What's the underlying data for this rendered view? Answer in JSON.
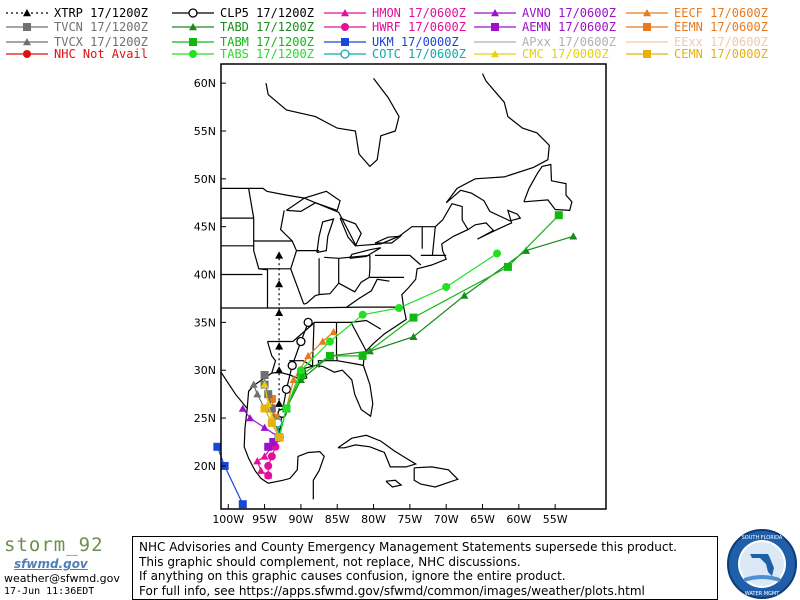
{
  "legend": [
    {
      "label": "XTRP 17/1200Z",
      "color": "#000000",
      "marker": "triangle",
      "dash": "dotted"
    },
    {
      "label": "CLP5 17/1200Z",
      "color": "#000000",
      "marker": "circle-open",
      "dash": "solid"
    },
    {
      "label": "HMON 17/0600Z",
      "color": "#e0109c",
      "marker": "triangle",
      "dash": "solid"
    },
    {
      "label": "AVNO 17/0600Z",
      "color": "#9b10c8",
      "marker": "triangle",
      "dash": "solid"
    },
    {
      "label": "EECF 17/0600Z",
      "color": "#e87a1e",
      "marker": "triangle",
      "dash": "solid"
    },
    {
      "label": "TVCN 17/1200Z",
      "color": "#707070",
      "marker": "square",
      "dash": "solid"
    },
    {
      "label": "TABD 17/1200Z",
      "color": "#1a8a1a",
      "marker": "triangle",
      "dash": "solid"
    },
    {
      "label": "HWRF 17/0600Z",
      "color": "#e0109c",
      "marker": "circle",
      "dash": "solid"
    },
    {
      "label": "AEMN 17/0600Z",
      "color": "#9b10c8",
      "marker": "square",
      "dash": "solid"
    },
    {
      "label": "EEMN 17/0600Z",
      "color": "#e87a1e",
      "marker": "square",
      "dash": "solid"
    },
    {
      "label": "TVCX 17/1200Z",
      "color": "#707070",
      "marker": "triangle",
      "dash": "solid"
    },
    {
      "label": "TABM 17/1200Z",
      "color": "#12b812",
      "marker": "square",
      "dash": "solid"
    },
    {
      "label": "UKM 17/0000Z",
      "color": "#1846d6",
      "marker": "square",
      "dash": "solid"
    },
    {
      "label": "APxx 17/0600Z",
      "color": "#b0b0b0",
      "marker": "none",
      "dash": "solid"
    },
    {
      "label": "EExx 17/0600Z",
      "color": "#f4c8a8",
      "marker": "none",
      "dash": "solid"
    },
    {
      "label": "NHC Not Avail",
      "color": "#e01010",
      "marker": "circle",
      "dash": "solid"
    },
    {
      "label": "TABS 17/1200Z",
      "color": "#22e022",
      "marker": "circle",
      "dash": "solid"
    },
    {
      "label": "COTC 17/0600Z",
      "color": "#10a8b0",
      "marker": "circle-open",
      "dash": "solid"
    },
    {
      "label": "CMC 17/0000Z",
      "color": "#e8d010",
      "marker": "triangle",
      "dash": "solid"
    },
    {
      "label": "CEMN 17/0000Z",
      "color": "#e8b010",
      "marker": "square",
      "dash": "solid"
    }
  ],
  "chart_data": {
    "type": "line",
    "xlabel": "",
    "ylabel": "",
    "x_ticks": [
      "100W",
      "95W",
      "90W",
      "85W",
      "80W",
      "75W",
      "70W",
      "65W",
      "60W",
      "55W"
    ],
    "y_ticks": [
      "20N",
      "25N",
      "30N",
      "35N",
      "40N",
      "45N",
      "50N",
      "55N",
      "60N"
    ],
    "xlim": [
      -101,
      -48
    ],
    "ylim": [
      15.5,
      62
    ],
    "grid": false,
    "series": [
      {
        "name": "XTRP",
        "color": "#000000",
        "marker": "triangle",
        "x": [
          -93.0,
          -93.0,
          -93.0,
          -93.0,
          -93.0,
          -93.0,
          -93.0
        ],
        "y": [
          23.2,
          26.5,
          30.0,
          32.5,
          36.0,
          39.0,
          42.0
        ]
      },
      {
        "name": "CLP5",
        "color": "#000000",
        "marker": "circle-open",
        "x": [
          -93.0,
          -92.6,
          -92.0,
          -91.2,
          -90.0,
          -89.0
        ],
        "y": [
          23.0,
          25.5,
          28.0,
          30.5,
          33.0,
          35.0
        ]
      },
      {
        "name": "HMON",
        "color": "#e0109c",
        "marker": "triangle",
        "x": [
          -93.0,
          -94.0,
          -95.0,
          -96.0,
          -95.5,
          -94.5
        ],
        "y": [
          23.0,
          22.0,
          21.0,
          20.5,
          19.5,
          19.0
        ]
      },
      {
        "name": "HWRF",
        "color": "#e0109c",
        "marker": "circle",
        "x": [
          -93.0,
          -93.5,
          -94.0,
          -94.5,
          -94.5
        ],
        "y": [
          23.0,
          22.0,
          21.0,
          20.0,
          19.0
        ]
      },
      {
        "name": "AVNO",
        "color": "#9b10c8",
        "marker": "triangle",
        "x": [
          -93.0,
          -95.0,
          -97.0,
          -98.0
        ],
        "y": [
          23.0,
          24.0,
          25.0,
          26.0
        ]
      },
      {
        "name": "AEMN",
        "color": "#9b10c8",
        "marker": "square",
        "x": [
          -93.0,
          -93.8,
          -94.5
        ],
        "y": [
          23.0,
          22.5,
          22.0
        ]
      },
      {
        "name": "EECF",
        "color": "#e87a1e",
        "marker": "triangle",
        "x": [
          -93.0,
          -92.0,
          -91.0,
          -89.0,
          -87.0,
          -85.5
        ],
        "y": [
          23.0,
          26.0,
          29.0,
          31.5,
          33.0,
          34.0
        ]
      },
      {
        "name": "EEMN",
        "color": "#e87a1e",
        "marker": "square",
        "x": [
          -93.0,
          -93.5,
          -94.0
        ],
        "y": [
          23.0,
          25.0,
          27.0
        ]
      },
      {
        "name": "TVCN",
        "color": "#707070",
        "marker": "square",
        "x": [
          -93.0,
          -93.5,
          -94.0,
          -94.5,
          -95.0,
          -95.0
        ],
        "y": [
          23.0,
          24.5,
          26.0,
          27.5,
          28.5,
          29.5
        ]
      },
      {
        "name": "TVCX",
        "color": "#707070",
        "marker": "triangle",
        "x": [
          -93.0,
          -94.0,
          -95.0,
          -96.0,
          -96.5
        ],
        "y": [
          23.0,
          24.5,
          26.0,
          27.5,
          28.5
        ]
      },
      {
        "name": "TABD",
        "color": "#1a8a1a",
        "marker": "triangle",
        "x": [
          -93.0,
          -92.0,
          -90.0,
          -86.0,
          -80.5,
          -74.5,
          -67.5,
          -59.0,
          -52.5
        ],
        "y": [
          23.0,
          26.0,
          29.0,
          31.5,
          32.0,
          33.5,
          37.8,
          42.5,
          44.0
        ]
      },
      {
        "name": "TABM",
        "color": "#12b812",
        "marker": "square",
        "x": [
          -93.0,
          -92.0,
          -90.0,
          -86.0,
          -81.5,
          -74.5,
          -61.5,
          -54.5
        ],
        "y": [
          23.0,
          26.0,
          29.5,
          31.5,
          31.5,
          35.5,
          40.8,
          46.2
        ]
      },
      {
        "name": "TABS",
        "color": "#22e022",
        "marker": "circle",
        "x": [
          -93.0,
          -92.0,
          -90.0,
          -86.0,
          -81.5,
          -76.5,
          -70.0,
          -63.0
        ],
        "y": [
          23.0,
          26.0,
          30.0,
          33.0,
          35.8,
          36.5,
          38.7,
          42.2
        ]
      },
      {
        "name": "UKM",
        "color": "#1846d6",
        "marker": "square",
        "x": [
          -101.5,
          -100.5,
          -98.0
        ],
        "y": [
          22.0,
          20.0,
          16.0
        ]
      },
      {
        "name": "COTC",
        "color": "#10a8b0",
        "marker": "circle-open",
        "x": [
          -93.0,
          -93.2
        ],
        "y": [
          23.0,
          24.5
        ]
      },
      {
        "name": "CMC",
        "color": "#e8d010",
        "marker": "triangle",
        "x": [
          -93.0,
          -94.0,
          -94.5,
          -95.0
        ],
        "y": [
          23.0,
          25.0,
          26.5,
          28.5
        ]
      },
      {
        "name": "CEMN",
        "color": "#e8b010",
        "marker": "square",
        "x": [
          -93.0,
          -94.0,
          -95.0
        ],
        "y": [
          23.0,
          24.5,
          26.0
        ]
      }
    ]
  },
  "brand": {
    "name": "storm_92",
    "site": "sfwmd.gov",
    "email": "weather@sfwmd.gov",
    "timestamp": "17-Jun 11:36EDT"
  },
  "disclaimer": [
    "NHC Advisories and County Emergency Management Statements supersede this product.",
    "This graphic should complement, not replace, NHC discussions.",
    "If anything on this graphic causes confusion, ignore the entire product.",
    "For full info, see  https://apps.sfwmd.gov/sfwmd/common/images/weather/plots.html"
  ],
  "seal_text": "SOUTH FLORIDA WATER MANAGEMENT DISTRICT"
}
